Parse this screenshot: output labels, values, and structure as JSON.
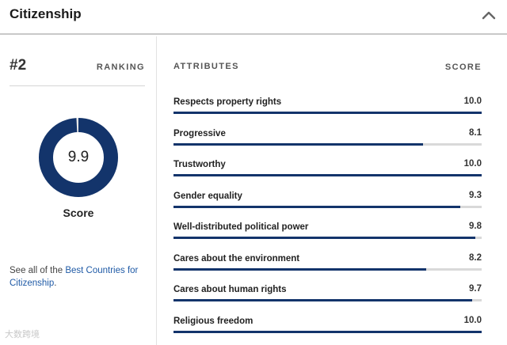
{
  "header": {
    "title": "Citizenship",
    "collapse_icon": "chevron-up-icon"
  },
  "ranking": {
    "number": "#2",
    "label": "RANKING"
  },
  "score": {
    "value": "9.9",
    "label": "Score",
    "fraction": 0.99,
    "ring_color": "#13346b"
  },
  "see_all": {
    "prefix": "See all of the ",
    "link_text": "Best Countries for Citizenship",
    "suffix": "."
  },
  "attributes": {
    "header_label": "ATTRIBUTES",
    "score_label": "SCORE",
    "bar_color": "#13346b",
    "items": [
      {
        "label": "Respects property rights",
        "score": "10.0",
        "fraction": 1.0
      },
      {
        "label": "Progressive",
        "score": "8.1",
        "fraction": 0.81
      },
      {
        "label": "Trustworthy",
        "score": "10.0",
        "fraction": 1.0
      },
      {
        "label": "Gender equality",
        "score": "9.3",
        "fraction": 0.93
      },
      {
        "label": "Well-distributed political power",
        "score": "9.8",
        "fraction": 0.98
      },
      {
        "label": "Cares about the environment",
        "score": "8.2",
        "fraction": 0.82
      },
      {
        "label": "Cares about human rights",
        "score": "9.7",
        "fraction": 0.97
      },
      {
        "label": "Religious freedom",
        "score": "10.0",
        "fraction": 1.0
      }
    ]
  },
  "watermark": "大数跨境"
}
